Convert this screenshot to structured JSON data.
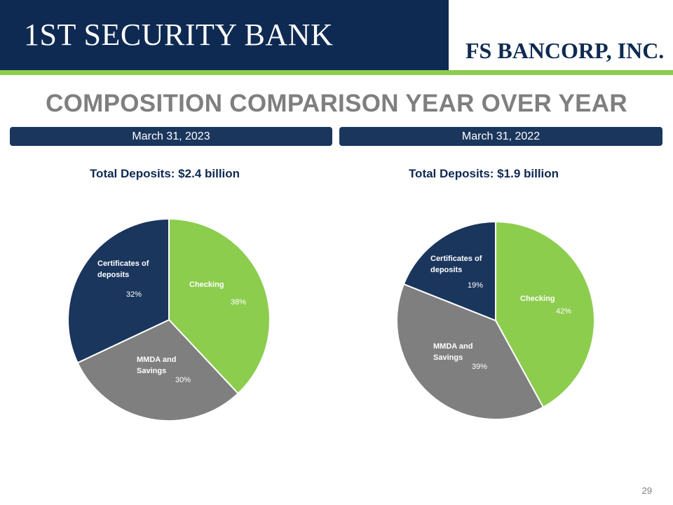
{
  "header": {
    "brand_left": "1ST SECURITY BANK",
    "brand_right": "FS BANCORP, INC."
  },
  "page_title": "COMPOSITION COMPARISON YEAR OVER YEAR",
  "page_number": "29",
  "colors": {
    "navy": "#1b365d",
    "green": "#8ccd4e",
    "gray": "#7f7f7f",
    "navy_dark": "#0f2a52"
  },
  "chart_data": [
    {
      "type": "pie",
      "date": "March 31, 2023",
      "title": "Total Deposits:  $2.4 billion",
      "slices": [
        {
          "label": "Checking",
          "value": 38,
          "value_label": "38%",
          "color": "#8ccd4e"
        },
        {
          "label": "MMDA and Savings",
          "value": 30,
          "value_label": "30%",
          "color": "#7f7f7f"
        },
        {
          "label": "Certificates of deposits",
          "value": 32,
          "value_label": "32%",
          "color": "#1b365d"
        }
      ]
    },
    {
      "type": "pie",
      "date": "March 31, 2022",
      "title": "Total Deposits:  $1.9 billion",
      "slices": [
        {
          "label": "Checking",
          "value": 42,
          "value_label": "42%",
          "color": "#8ccd4e"
        },
        {
          "label": "MMDA and Savings",
          "value": 39,
          "value_label": "39%",
          "color": "#7f7f7f"
        },
        {
          "label": "Certificates of deposits",
          "value": 19,
          "value_label": "19%",
          "color": "#1b365d"
        }
      ]
    }
  ]
}
